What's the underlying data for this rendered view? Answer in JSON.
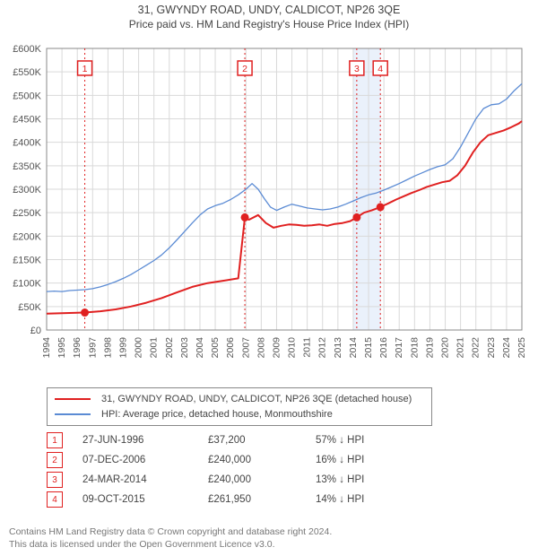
{
  "title_line1": "31, GWYNDY ROAD, UNDY, CALDICOT, NP26 3QE",
  "title_line2": "Price paid vs. HM Land Registry's House Price Index (HPI)",
  "chart": {
    "type": "line",
    "background_color": "#ffffff",
    "grid_color": "#d9d9d9",
    "plot_border_color": "#888888",
    "x": {
      "min": 1994,
      "max": 2025,
      "tick_step": 1,
      "ticks": [
        1994,
        1995,
        1996,
        1997,
        1998,
        1999,
        2000,
        2001,
        2002,
        2003,
        2004,
        2005,
        2006,
        2007,
        2008,
        2009,
        2010,
        2011,
        2012,
        2013,
        2014,
        2015,
        2016,
        2017,
        2018,
        2019,
        2020,
        2021,
        2022,
        2023,
        2024,
        2025
      ]
    },
    "y": {
      "min": 0,
      "max": 600000,
      "tick_step": 50000,
      "ticks": [
        "£0",
        "£50K",
        "£100K",
        "£150K",
        "£200K",
        "£250K",
        "£300K",
        "£350K",
        "£400K",
        "£450K",
        "£500K",
        "£550K",
        "£600K"
      ]
    },
    "highlight_band": {
      "from": 2014.0,
      "to": 2015.8,
      "color": "#eaf1fb"
    },
    "series": [
      {
        "id": "price_paid",
        "label": "31, GWYNDY ROAD, UNDY, CALDICOT, NP26 3QE (detached house)",
        "color": "#e02020",
        "line_width": 2,
        "points": [
          [
            1994.0,
            35000
          ],
          [
            1996.49,
            37200
          ],
          [
            1997.5,
            40000
          ],
          [
            1998.5,
            44000
          ],
          [
            1999.5,
            50000
          ],
          [
            2000.5,
            58000
          ],
          [
            2001.5,
            68000
          ],
          [
            2002.5,
            80000
          ],
          [
            2003.5,
            92000
          ],
          [
            2004.5,
            100000
          ],
          [
            2005.5,
            105000
          ],
          [
            2006.5,
            110000
          ],
          [
            2006.93,
            240000
          ],
          [
            2007.2,
            235000
          ],
          [
            2007.8,
            245000
          ],
          [
            2008.3,
            228000
          ],
          [
            2008.8,
            218000
          ],
          [
            2009.3,
            222000
          ],
          [
            2009.8,
            225000
          ],
          [
            2010.3,
            224000
          ],
          [
            2010.8,
            222000
          ],
          [
            2011.3,
            223000
          ],
          [
            2011.8,
            225000
          ],
          [
            2012.3,
            222000
          ],
          [
            2012.8,
            226000
          ],
          [
            2013.3,
            228000
          ],
          [
            2013.8,
            232000
          ],
          [
            2014.23,
            240000
          ],
          [
            2014.7,
            250000
          ],
          [
            2015.2,
            255000
          ],
          [
            2015.77,
            261950
          ],
          [
            2016.3,
            270000
          ],
          [
            2016.8,
            278000
          ],
          [
            2017.3,
            285000
          ],
          [
            2017.8,
            292000
          ],
          [
            2018.3,
            298000
          ],
          [
            2018.8,
            305000
          ],
          [
            2019.3,
            310000
          ],
          [
            2019.8,
            315000
          ],
          [
            2020.3,
            318000
          ],
          [
            2020.8,
            330000
          ],
          [
            2021.3,
            350000
          ],
          [
            2021.8,
            378000
          ],
          [
            2022.3,
            400000
          ],
          [
            2022.8,
            415000
          ],
          [
            2023.3,
            420000
          ],
          [
            2023.8,
            425000
          ],
          [
            2024.3,
            432000
          ],
          [
            2024.8,
            440000
          ],
          [
            2025.0,
            445000
          ]
        ],
        "markers": [
          {
            "n": 1,
            "x": 1996.49,
            "y": 37200
          },
          {
            "n": 2,
            "x": 2006.93,
            "y": 240000
          },
          {
            "n": 3,
            "x": 2014.23,
            "y": 240000
          },
          {
            "n": 4,
            "x": 2015.77,
            "y": 261950
          }
        ],
        "marker_label_y": 558000
      },
      {
        "id": "hpi",
        "label": "HPI: Average price, detached house, Monmouthshire",
        "color": "#5b8bd4",
        "line_width": 1.3,
        "points": [
          [
            1994.0,
            82000
          ],
          [
            1994.5,
            83000
          ],
          [
            1995.0,
            82000
          ],
          [
            1995.5,
            84000
          ],
          [
            1996.0,
            85000
          ],
          [
            1996.5,
            86000
          ],
          [
            1997.0,
            88000
          ],
          [
            1997.5,
            92000
          ],
          [
            1998.0,
            97000
          ],
          [
            1998.5,
            103000
          ],
          [
            1999.0,
            110000
          ],
          [
            1999.5,
            118000
          ],
          [
            2000.0,
            128000
          ],
          [
            2000.5,
            138000
          ],
          [
            2001.0,
            148000
          ],
          [
            2001.5,
            160000
          ],
          [
            2002.0,
            175000
          ],
          [
            2002.5,
            192000
          ],
          [
            2003.0,
            210000
          ],
          [
            2003.5,
            228000
          ],
          [
            2004.0,
            245000
          ],
          [
            2004.5,
            258000
          ],
          [
            2005.0,
            265000
          ],
          [
            2005.5,
            270000
          ],
          [
            2006.0,
            278000
          ],
          [
            2006.5,
            288000
          ],
          [
            2007.0,
            300000
          ],
          [
            2007.4,
            312000
          ],
          [
            2007.8,
            300000
          ],
          [
            2008.2,
            280000
          ],
          [
            2008.6,
            262000
          ],
          [
            2009.0,
            255000
          ],
          [
            2009.5,
            262000
          ],
          [
            2010.0,
            268000
          ],
          [
            2010.5,
            264000
          ],
          [
            2011.0,
            260000
          ],
          [
            2011.5,
            258000
          ],
          [
            2012.0,
            256000
          ],
          [
            2012.5,
            258000
          ],
          [
            2013.0,
            262000
          ],
          [
            2013.5,
            268000
          ],
          [
            2014.0,
            275000
          ],
          [
            2014.5,
            282000
          ],
          [
            2015.0,
            288000
          ],
          [
            2015.5,
            292000
          ],
          [
            2016.0,
            298000
          ],
          [
            2016.5,
            305000
          ],
          [
            2017.0,
            312000
          ],
          [
            2017.5,
            320000
          ],
          [
            2018.0,
            328000
          ],
          [
            2018.5,
            335000
          ],
          [
            2019.0,
            342000
          ],
          [
            2019.5,
            348000
          ],
          [
            2020.0,
            352000
          ],
          [
            2020.5,
            365000
          ],
          [
            2021.0,
            390000
          ],
          [
            2021.5,
            420000
          ],
          [
            2022.0,
            450000
          ],
          [
            2022.5,
            472000
          ],
          [
            2023.0,
            480000
          ],
          [
            2023.5,
            482000
          ],
          [
            2024.0,
            492000
          ],
          [
            2024.5,
            510000
          ],
          [
            2025.0,
            525000
          ]
        ]
      }
    ]
  },
  "legend": {
    "items": [
      {
        "color": "#e02020",
        "text": "31, GWYNDY ROAD, UNDY, CALDICOT, NP26 3QE (detached house)"
      },
      {
        "color": "#5b8bd4",
        "text": "HPI: Average price, detached house, Monmouthshire"
      }
    ]
  },
  "sales": [
    {
      "n": "1",
      "date": "27-JUN-1996",
      "price": "£37,200",
      "pct": "57% ↓ HPI"
    },
    {
      "n": "2",
      "date": "07-DEC-2006",
      "price": "£240,000",
      "pct": "16% ↓ HPI"
    },
    {
      "n": "3",
      "date": "24-MAR-2014",
      "price": "£240,000",
      "pct": "13% ↓ HPI"
    },
    {
      "n": "4",
      "date": "09-OCT-2015",
      "price": "£261,950",
      "pct": "14% ↓ HPI"
    }
  ],
  "footer_line1": "Contains HM Land Registry data © Crown copyright and database right 2024.",
  "footer_line2": "This data is licensed under the Open Government Licence v3.0."
}
